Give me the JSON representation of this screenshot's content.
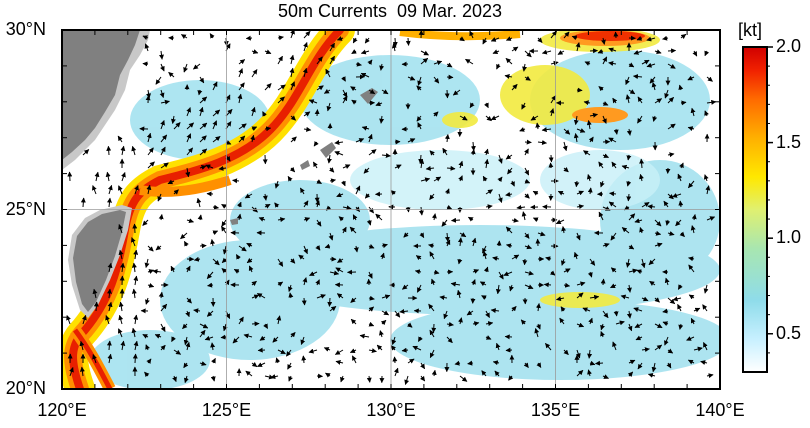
{
  "title": "50m Currents  09 Mar. 2023",
  "map": {
    "lon_range": [
      120,
      140
    ],
    "lat_range": [
      20,
      30
    ],
    "lat_ticks": [
      {
        "value": 30,
        "label": "30°N"
      },
      {
        "value": 25,
        "label": "25°N"
      },
      {
        "value": 20,
        "label": "20°N"
      }
    ],
    "lon_ticks": [
      {
        "value": 120,
        "label": "120°E"
      },
      {
        "value": 125,
        "label": "125°E"
      },
      {
        "value": 130,
        "label": "130°E"
      },
      {
        "value": 135,
        "label": "135°E"
      },
      {
        "value": 140,
        "label": "140°E"
      }
    ],
    "gridlines": true,
    "land_color": "#808080",
    "land_light_color": "#c8c8c8"
  },
  "colorbar": {
    "unit": "[kt]",
    "min": 0.3,
    "max": 2.0,
    "ticks": [
      {
        "value": 2.0,
        "label": "2.0"
      },
      {
        "value": 1.5,
        "label": "1.5"
      },
      {
        "value": 1.0,
        "label": "1.0"
      },
      {
        "value": 0.5,
        "label": "0.5"
      }
    ],
    "colors": [
      "#ffffff",
      "#c8f0ff",
      "#8fdcea",
      "#a8e6b0",
      "#e0f070",
      "#ffe800",
      "#ffb000",
      "#ff6a00",
      "#f02000",
      "#d00000"
    ]
  }
}
